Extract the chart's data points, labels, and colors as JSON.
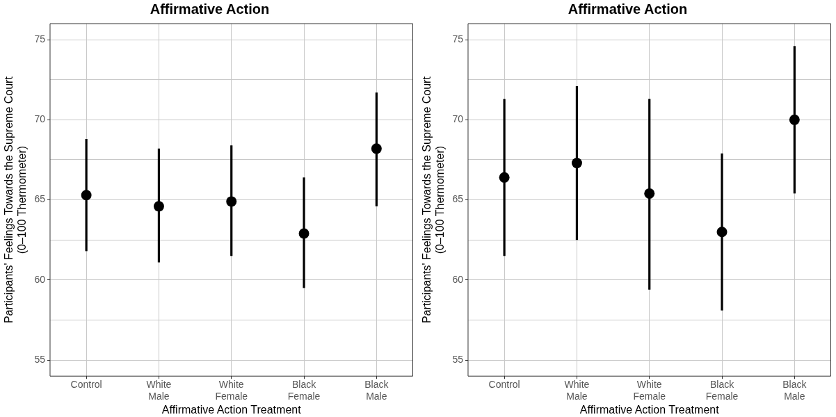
{
  "chart_data": [
    {
      "type": "scatter",
      "title": "Affirmative Action",
      "xlabel": "Affirmative Action Treatment",
      "ylabel": "Participants' Feelings Towards the Supreme Court\n(0–100 Thermometer)",
      "categories": [
        "Control",
        "White Male",
        "White Female",
        "Black Female",
        "Black Male"
      ],
      "values": [
        65.3,
        64.6,
        64.9,
        62.9,
        68.2
      ],
      "errors": [
        [
          61.8,
          68.8
        ],
        [
          61.1,
          68.2
        ],
        [
          61.5,
          68.4
        ],
        [
          59.5,
          66.4
        ],
        [
          64.6,
          71.7
        ]
      ],
      "color": "#000000",
      "marker": "circle",
      "grid": true,
      "legend": false,
      "ylim": [
        54,
        76
      ],
      "yticks": [
        {
          "value": 55,
          "label": "55"
        },
        {
          "value": 57.5,
          "label": null
        },
        {
          "value": 60,
          "label": "60"
        },
        {
          "value": 62.5,
          "label": null
        },
        {
          "value": 65,
          "label": "65"
        },
        {
          "value": 67.5,
          "label": null
        },
        {
          "value": 70,
          "label": "70"
        },
        {
          "value": 72.5,
          "label": null
        },
        {
          "value": 75,
          "label": "75"
        }
      ]
    },
    {
      "type": "scatter",
      "title": "Affirmative Action",
      "xlabel": "Affirmative Action Treatment",
      "ylabel": "Participants' Feelings Towards the Supreme Court\n(0–100 Thermometer)",
      "categories": [
        "Control",
        "White Male",
        "White Female",
        "Black Female",
        "Black Male"
      ],
      "values": [
        66.4,
        67.3,
        65.4,
        63.0,
        70.0
      ],
      "errors": [
        [
          61.5,
          71.3
        ],
        [
          62.5,
          72.1
        ],
        [
          59.4,
          71.3
        ],
        [
          58.1,
          67.9
        ],
        [
          65.4,
          74.6
        ]
      ],
      "color": "#000000",
      "marker": "circle",
      "grid": true,
      "legend": false,
      "ylim": [
        54,
        76
      ],
      "yticks": [
        {
          "value": 55,
          "label": "55"
        },
        {
          "value": 57.5,
          "label": null
        },
        {
          "value": 60,
          "label": "60"
        },
        {
          "value": 62.5,
          "label": null
        },
        {
          "value": 65,
          "label": "65"
        },
        {
          "value": 67.5,
          "label": null
        },
        {
          "value": 70,
          "label": "70"
        },
        {
          "value": 72.5,
          "label": null
        },
        {
          "value": 75,
          "label": "75"
        }
      ]
    }
  ]
}
